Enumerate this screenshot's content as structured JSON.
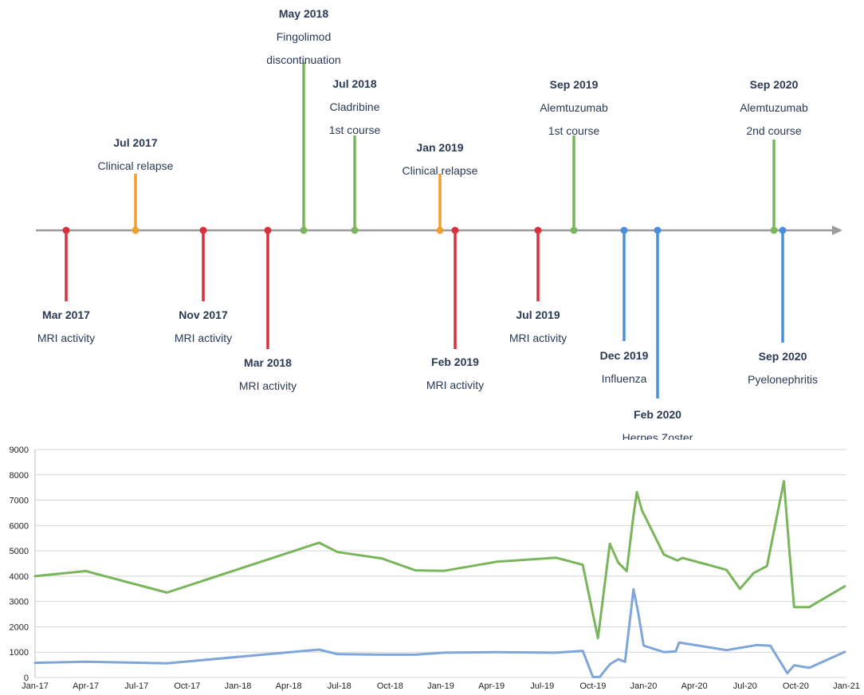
{
  "colors": {
    "mri": "#d9303e",
    "relapse": "#f0a033",
    "treatment": "#7ab55c",
    "infection": "#4a8fd8",
    "axis": "#9a9a9a",
    "text": "#2a3a55",
    "grid": "#d4d4d4",
    "series_green": "#7ab55c",
    "series_blue": "#7ea6d8"
  },
  "timeline": {
    "events": [
      {
        "date": "Mar 2017",
        "lines": [
          "MRI activity"
        ],
        "category": "mri"
      },
      {
        "date": "Jul 2017",
        "lines": [
          "Clinical relapse"
        ],
        "category": "relapse"
      },
      {
        "date": "Nov 2017",
        "lines": [
          "MRI activity"
        ],
        "category": "mri"
      },
      {
        "date": "Mar 2018",
        "lines": [
          "MRI activity"
        ],
        "category": "mri"
      },
      {
        "date": "May 2018",
        "lines": [
          "Fingolimod",
          "discontinuation"
        ],
        "category": "treatment"
      },
      {
        "date": "Jul 2018",
        "lines": [
          "Cladribine",
          "1st course"
        ],
        "category": "treatment"
      },
      {
        "date": "Jan 2019",
        "lines": [
          "Clinical relapse"
        ],
        "category": "relapse"
      },
      {
        "date": "Feb 2019",
        "lines": [
          "MRI activity"
        ],
        "category": "mri"
      },
      {
        "date": "Jul 2019",
        "lines": [
          "MRI activity"
        ],
        "category": "mri"
      },
      {
        "date": "Sep 2019",
        "lines": [
          "Alemtuzumab",
          "1st course"
        ],
        "category": "treatment"
      },
      {
        "date": "Dec 2019",
        "lines": [
          "Influenza"
        ],
        "category": "infection"
      },
      {
        "date": "Feb 2020",
        "lines": [
          "Herpes Zoster"
        ],
        "category": "infection"
      },
      {
        "date": "Sep 2020",
        "lines": [
          "Alemtuzumab",
          "2nd course"
        ],
        "category": "treatment"
      },
      {
        "date": "Sep 2020",
        "lines": [
          "Pyelonephritis"
        ],
        "category": "infection"
      }
    ]
  },
  "chart_data": {
    "type": "line",
    "title": "",
    "xlabel": "",
    "ylabel": "",
    "ylim": [
      0,
      9000
    ],
    "yticks": [
      0,
      1000,
      2000,
      3000,
      4000,
      5000,
      6000,
      7000,
      8000,
      9000
    ],
    "xlim": [
      0,
      48
    ],
    "xunit": "months since Jan-17",
    "x_tick_labels": [
      "Jan-17",
      "Apr-17",
      "Jul-17",
      "Oct-17",
      "Jan-18",
      "Apr-18",
      "Jul-18",
      "Oct-18",
      "Jan-19",
      "Apr-19",
      "Jul-19",
      "Oct-19",
      "Jan-20",
      "Apr-20",
      "Jul-20",
      "Oct-20",
      "Jan-21"
    ],
    "grid": true,
    "legend": "none",
    "series": [
      {
        "name": "green series",
        "color_key": "series_green",
        "points": [
          [
            0,
            4000
          ],
          [
            3,
            4200
          ],
          [
            7.8,
            3350
          ],
          [
            16.8,
            5320
          ],
          [
            17.9,
            4950
          ],
          [
            20.5,
            4700
          ],
          [
            22.5,
            4230
          ],
          [
            24.2,
            4210
          ],
          [
            27.3,
            4570
          ],
          [
            30.8,
            4730
          ],
          [
            32.4,
            4450
          ],
          [
            33.3,
            1550
          ],
          [
            34,
            5280
          ],
          [
            34.5,
            4530
          ],
          [
            35,
            4200
          ],
          [
            35.4,
            6400
          ],
          [
            35.6,
            7320
          ],
          [
            35.9,
            6600
          ],
          [
            37.2,
            4850
          ],
          [
            38,
            4620
          ],
          [
            38.3,
            4720
          ],
          [
            40.9,
            4250
          ],
          [
            41.7,
            3500
          ],
          [
            42.5,
            4120
          ],
          [
            43.3,
            4400
          ],
          [
            44.3,
            7750
          ],
          [
            44.6,
            5200
          ],
          [
            44.9,
            2780
          ],
          [
            45.8,
            2780
          ],
          [
            47.9,
            3600
          ]
        ]
      },
      {
        "name": "blue series",
        "color_key": "series_blue",
        "points": [
          [
            0,
            580
          ],
          [
            3,
            620
          ],
          [
            7.8,
            560
          ],
          [
            16.8,
            1100
          ],
          [
            17.9,
            920
          ],
          [
            20.5,
            900
          ],
          [
            22.5,
            900
          ],
          [
            24.2,
            980
          ],
          [
            27.3,
            1000
          ],
          [
            30.8,
            980
          ],
          [
            32.4,
            1050
          ],
          [
            33,
            20
          ],
          [
            33.4,
            20
          ],
          [
            34,
            520
          ],
          [
            34.5,
            720
          ],
          [
            34.9,
            620
          ],
          [
            35.4,
            3480
          ],
          [
            35.7,
            2500
          ],
          [
            36,
            1260
          ],
          [
            37.2,
            1000
          ],
          [
            37.9,
            1030
          ],
          [
            38.1,
            1380
          ],
          [
            40.9,
            1080
          ],
          [
            42.7,
            1280
          ],
          [
            43.5,
            1250
          ],
          [
            44.5,
            170
          ],
          [
            44.9,
            480
          ],
          [
            45.8,
            380
          ],
          [
            47.9,
            1010
          ]
        ]
      }
    ]
  }
}
